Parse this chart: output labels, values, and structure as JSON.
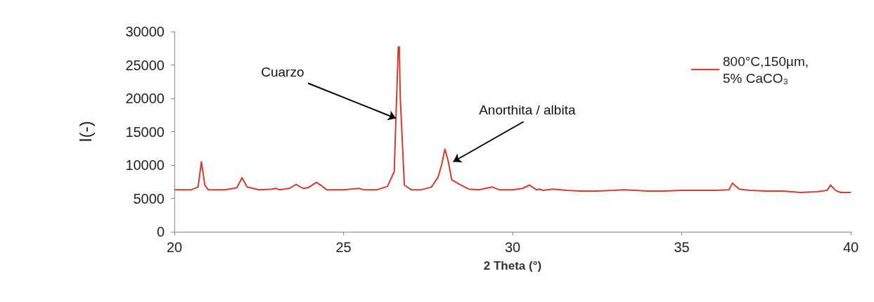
{
  "chart_data": {
    "type": "line",
    "xlabel": "2 Theta (°)",
    "ylabel": "I(-)",
    "xlim": [
      20,
      40
    ],
    "xticks": [
      20,
      25,
      30,
      35,
      40
    ],
    "ylim": [
      0,
      30000
    ],
    "yticks": [
      0,
      5000,
      10000,
      15000,
      20000,
      25000,
      30000
    ],
    "grid": false,
    "legend": "top right",
    "marker": "none",
    "line_style": "solid",
    "annotations": [
      {
        "text": "Cuarzo",
        "x": 26.55,
        "y": 17000
      },
      {
        "text": "Anorthita / albita",
        "x": 28.1,
        "y": 10500
      }
    ],
    "series": [
      {
        "name": "800°C,150µm, 5% CaCO₃",
        "color": "#d93a2b",
        "x": [
          20,
          20.5,
          20.7,
          20.8,
          20.9,
          21.0,
          21.5,
          21.85,
          22.0,
          22.15,
          22.5,
          22.9,
          23.0,
          23.1,
          23.4,
          23.6,
          23.8,
          23.95,
          24.05,
          24.2,
          24.35,
          24.5,
          25.0,
          25.45,
          25.6,
          26.0,
          26.3,
          26.5,
          26.62,
          26.65,
          26.68,
          26.8,
          27.0,
          27.3,
          27.6,
          27.8,
          27.9,
          28.0,
          28.1,
          28.2,
          28.4,
          28.7,
          29.0,
          29.4,
          29.6,
          30.0,
          30.3,
          30.5,
          30.7,
          30.8,
          30.9,
          31.2,
          31.6,
          32.0,
          32.5,
          33.0,
          33.3,
          33.6,
          34.0,
          34.5,
          35.0,
          35.5,
          36.0,
          36.4,
          36.5,
          36.7,
          37.0,
          37.5,
          38.0,
          38.5,
          39.0,
          39.3,
          39.4,
          39.55,
          39.7,
          40
        ],
        "values": [
          6300,
          6300,
          6700,
          10500,
          7000,
          6300,
          6300,
          6600,
          8100,
          6700,
          6300,
          6400,
          6500,
          6300,
          6500,
          7100,
          6500,
          6600,
          6900,
          7400,
          6900,
          6300,
          6300,
          6500,
          6300,
          6300,
          6800,
          9000,
          27700,
          27700,
          20000,
          7000,
          6300,
          6300,
          6700,
          8200,
          10000,
          12400,
          10500,
          7800,
          7200,
          6400,
          6300,
          6700,
          6300,
          6300,
          6500,
          7000,
          6300,
          6400,
          6200,
          6400,
          6200,
          6100,
          6100,
          6200,
          6300,
          6200,
          6100,
          6100,
          6200,
          6200,
          6200,
          6300,
          7300,
          6400,
          6200,
          6100,
          6100,
          5900,
          6000,
          6200,
          7000,
          6200,
          5900,
          5900
        ]
      }
    ]
  }
}
